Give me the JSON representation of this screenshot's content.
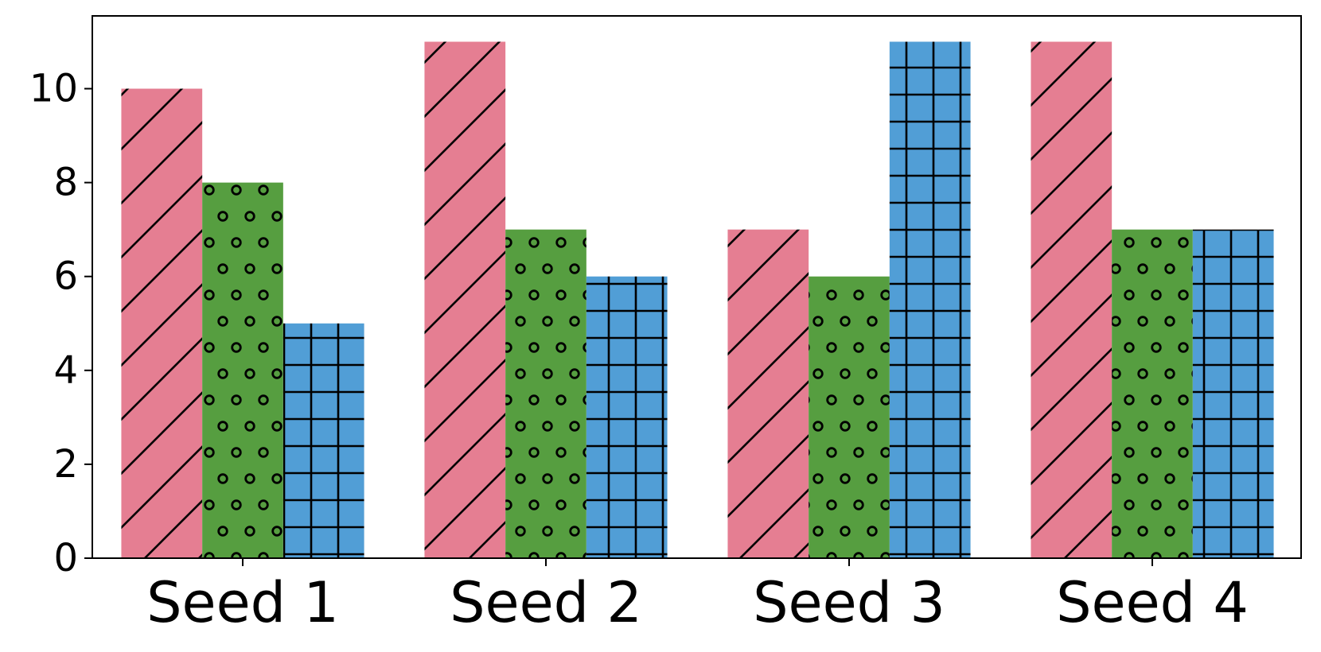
{
  "chart_data": {
    "type": "bar",
    "categories": [
      "Seed 1",
      "Seed 2",
      "Seed 3",
      "Seed 4"
    ],
    "series": [
      {
        "values": [
          10,
          11,
          7,
          11
        ],
        "color": "#e57e92",
        "hatch": "diagonal"
      },
      {
        "values": [
          8,
          7,
          6,
          7
        ],
        "color": "#569e40",
        "hatch": "circles"
      },
      {
        "values": [
          5,
          6,
          11,
          7
        ],
        "color": "#519ed6",
        "hatch": "grid"
      }
    ],
    "yticks": [
      0,
      2,
      4,
      6,
      8,
      10
    ],
    "ytick_labels": [
      "0",
      "2",
      "4",
      "6",
      "8",
      "10"
    ],
    "ylim": [
      0,
      11.55
    ],
    "title": "",
    "xlabel": "",
    "ylabel": "",
    "grid": false,
    "legend": "none"
  }
}
